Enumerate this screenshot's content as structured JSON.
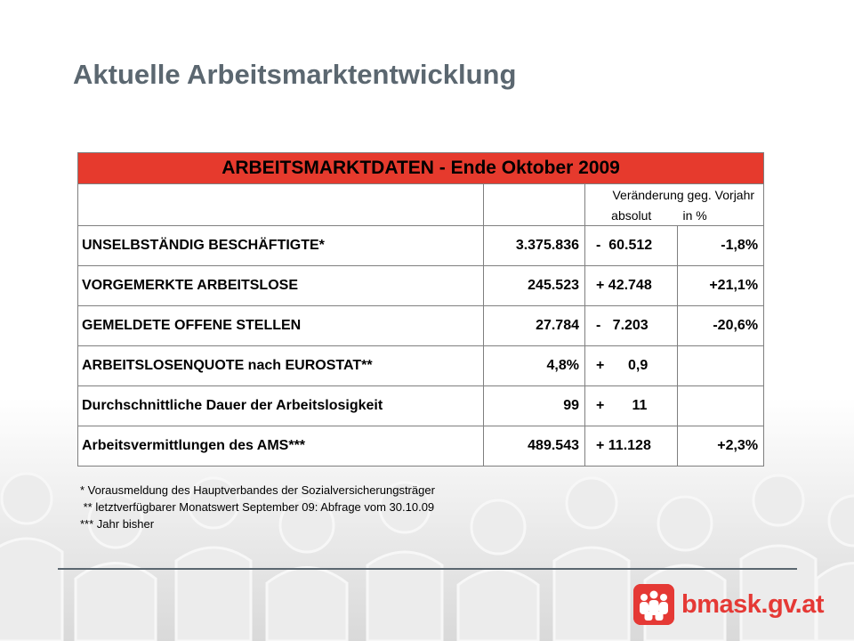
{
  "slide": {
    "title": "Aktuelle Arbeitsmarktentwicklung"
  },
  "table": {
    "header": "ARBEITSMARKTDATEN - Ende Oktober 2009",
    "change_header": "Veränderung geg. Vorjahr",
    "absolute_header": "absolut",
    "percent_header": "in %",
    "rows": [
      {
        "label": "UNSELBSTÄNDIG BESCHÄFTIGTE*",
        "value": "3.375.836",
        "change_abs": "-  60.512",
        "change_pct": "-1,8%"
      },
      {
        "label": "VORGEMERKTE ARBEITSLOSE",
        "value": "245.523",
        "change_abs": "+ 42.748",
        "change_pct": "+21,1%"
      },
      {
        "label": "GEMELDETE OFFENE STELLEN",
        "value": "27.784",
        "change_abs": "-   7.203",
        "change_pct": "-20,6%"
      },
      {
        "label": "ARBEITSLOSENQUOTE nach EUROSTAT**",
        "value": "4,8%",
        "change_abs": "+      0,9",
        "change_pct": ""
      },
      {
        "label": "Durchschnittliche Dauer der Arbeitslosigkeit",
        "value": "99",
        "change_abs": "+       11",
        "change_pct": ""
      },
      {
        "label": "Arbeitsvermittlungen des AMS***",
        "value": "489.543",
        "change_abs": "+ 11.128",
        "change_pct": "+2,3%"
      }
    ]
  },
  "footnotes": [
    "* Vorausmeldung des Hauptverbandes der Sozialversicherungsträger",
    " ** letztverfügbarer Monatswert September 09: Abfrage vom 30.10.09",
    "*** Jahr bisher"
  ],
  "logo": {
    "text": "bmask.gv.at",
    "icon": "people-group-icon",
    "color": "#e53935"
  },
  "colors": {
    "title": "#5b6770",
    "header_bg": "#e63a2d",
    "background_figures": "#e6e6e6"
  }
}
